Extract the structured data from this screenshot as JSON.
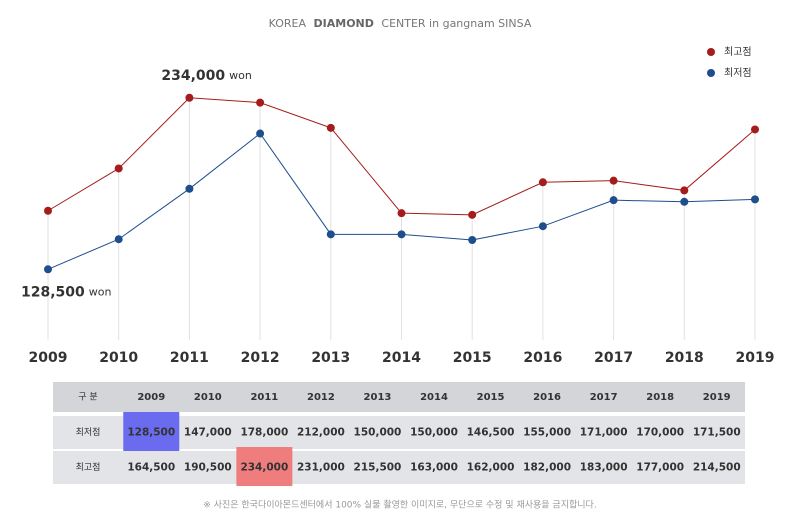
{
  "chart_data": {
    "type": "line",
    "title_parts": [
      "KOREA",
      "DIAMOND",
      "CENTER in gangnam SINSA"
    ],
    "categories": [
      "2009",
      "2010",
      "2011",
      "2012",
      "2013",
      "2014",
      "2015",
      "2016",
      "2017",
      "2018",
      "2019"
    ],
    "series": [
      {
        "name": "최고점",
        "color": "#a51c1c",
        "values": [
          164500,
          190500,
          234000,
          231000,
          215500,
          163000,
          162000,
          182000,
          183000,
          177000,
          214500
        ]
      },
      {
        "name": "최저점",
        "color": "#1f4e8c",
        "values": [
          128500,
          147000,
          178000,
          212000,
          150000,
          150000,
          146500,
          155000,
          171000,
          170000,
          171500
        ]
      }
    ],
    "ylim": [
      85000,
      240000
    ],
    "legend": "top-right",
    "annotations": [
      {
        "category": "2011",
        "value": 234000,
        "label": "234,000",
        "unit": "won"
      },
      {
        "category": "2009",
        "value": 128500,
        "label": "128,500",
        "unit": "won"
      }
    ]
  },
  "table": {
    "header": [
      "구 분",
      "2009",
      "2010",
      "2011",
      "2012",
      "2013",
      "2014",
      "2015",
      "2016",
      "2017",
      "2018",
      "2019"
    ],
    "rows": [
      [
        "최저점",
        "128,500",
        "147,000",
        "178,000",
        "212,000",
        "150,000",
        "150,000",
        "146,500",
        "155,000",
        "171,000",
        "170,000",
        "171,500"
      ],
      [
        "최고점",
        "164,500",
        "190,500",
        "234,000",
        "231,000",
        "215,500",
        "163,000",
        "162,000",
        "182,000",
        "183,000",
        "177,000",
        "214,500"
      ]
    ]
  },
  "footnote": "※ 사진은 한국다이아몬드센터에서 100% 실물 촬영한 이미지로, 무단으로 수정 및 재사용을 금지합니다."
}
